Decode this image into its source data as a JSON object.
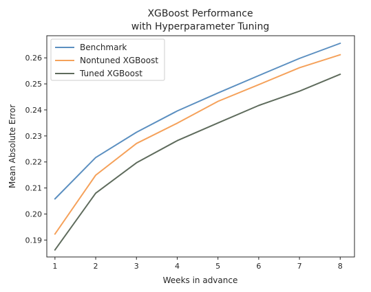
{
  "chart_data": {
    "type": "line",
    "title": "XGBoost Performance",
    "subtitle": "with Hyperparameter Tuning",
    "xlabel": "Weeks in advance",
    "ylabel": "Mean Absolute Error",
    "x": [
      1,
      2,
      3,
      4,
      5,
      6,
      7,
      8
    ],
    "xlim": [
      0.8,
      8.35
    ],
    "ylim": [
      0.1835,
      0.2685
    ],
    "xticks": [
      "1",
      "2",
      "3",
      "4",
      "5",
      "6",
      "7",
      "8"
    ],
    "yticks": [
      "0.19",
      "0.20",
      "0.21",
      "0.22",
      "0.23",
      "0.24",
      "0.25",
      "0.26"
    ],
    "grid": false,
    "legend_position": "top-left",
    "series": [
      {
        "name": "Benchmark",
        "color": "#5b8fc0",
        "values": [
          0.2058,
          0.2217,
          0.2314,
          0.2396,
          0.2465,
          0.2532,
          0.2598,
          0.2656
        ]
      },
      {
        "name": "Nontuned XGBoost",
        "color": "#f5a15a",
        "values": [
          0.1923,
          0.2149,
          0.2271,
          0.2349,
          0.2433,
          0.2497,
          0.2562,
          0.2612
        ]
      },
      {
        "name": "Tuned XGBoost",
        "color": "#5e6b5c",
        "values": [
          0.1862,
          0.208,
          0.2197,
          0.2282,
          0.235,
          0.2417,
          0.2472,
          0.2537
        ]
      }
    ]
  }
}
